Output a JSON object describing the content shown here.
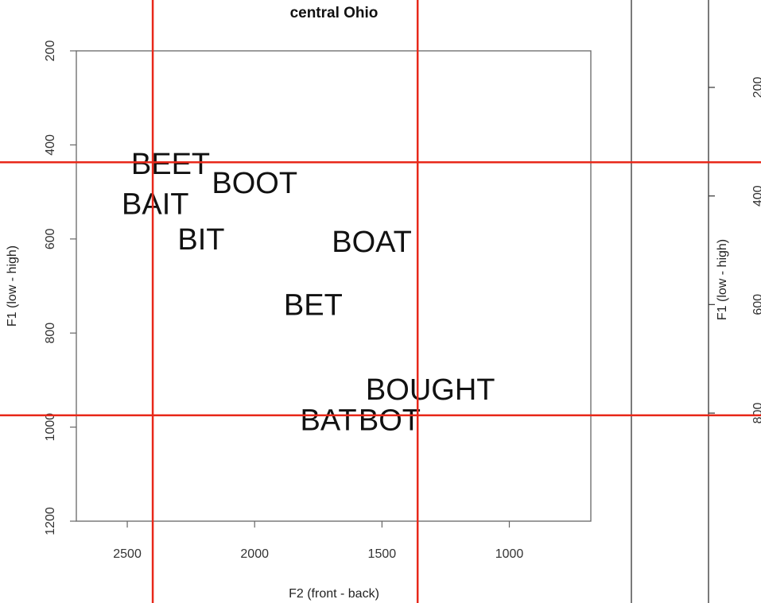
{
  "chart_data": [
    {
      "type": "scatter",
      "title": "central Ohio",
      "xlabel": "F2 (front - back)",
      "ylabel": "F1 (low - high)",
      "xlim": [
        2700,
        680
      ],
      "ylim": [
        1200,
        200
      ],
      "x_reversed": true,
      "y_reversed": true,
      "x_ticks": [
        2500,
        2000,
        1500,
        1000
      ],
      "y_ticks": [
        200,
        400,
        600,
        800,
        1000,
        1200
      ],
      "points": [
        {
          "label": "BEET",
          "x": 2330,
          "y": 440
        },
        {
          "label": "BOOT",
          "x": 2000,
          "y": 480
        },
        {
          "label": "BAIT",
          "x": 2390,
          "y": 525
        },
        {
          "label": "BIT",
          "x": 2210,
          "y": 600
        },
        {
          "label": "BOAT",
          "x": 1540,
          "y": 605
        },
        {
          "label": "BET",
          "x": 1770,
          "y": 740
        },
        {
          "label": "BOUGHT",
          "x": 1310,
          "y": 920
        },
        {
          "label": "BAT",
          "x": 1710,
          "y": 985
        },
        {
          "label": "BOT",
          "x": 1470,
          "y": 985
        }
      ],
      "reference_lines": {
        "x": [
          2400,
          1360
        ],
        "y": [
          437,
          975
        ],
        "color": "#e8281a"
      }
    },
    {
      "type": "scatter",
      "ylabel": "F1 (low - high)",
      "y_ticks": [
        200,
        400,
        600,
        800
      ],
      "partially_visible": true
    }
  ]
}
